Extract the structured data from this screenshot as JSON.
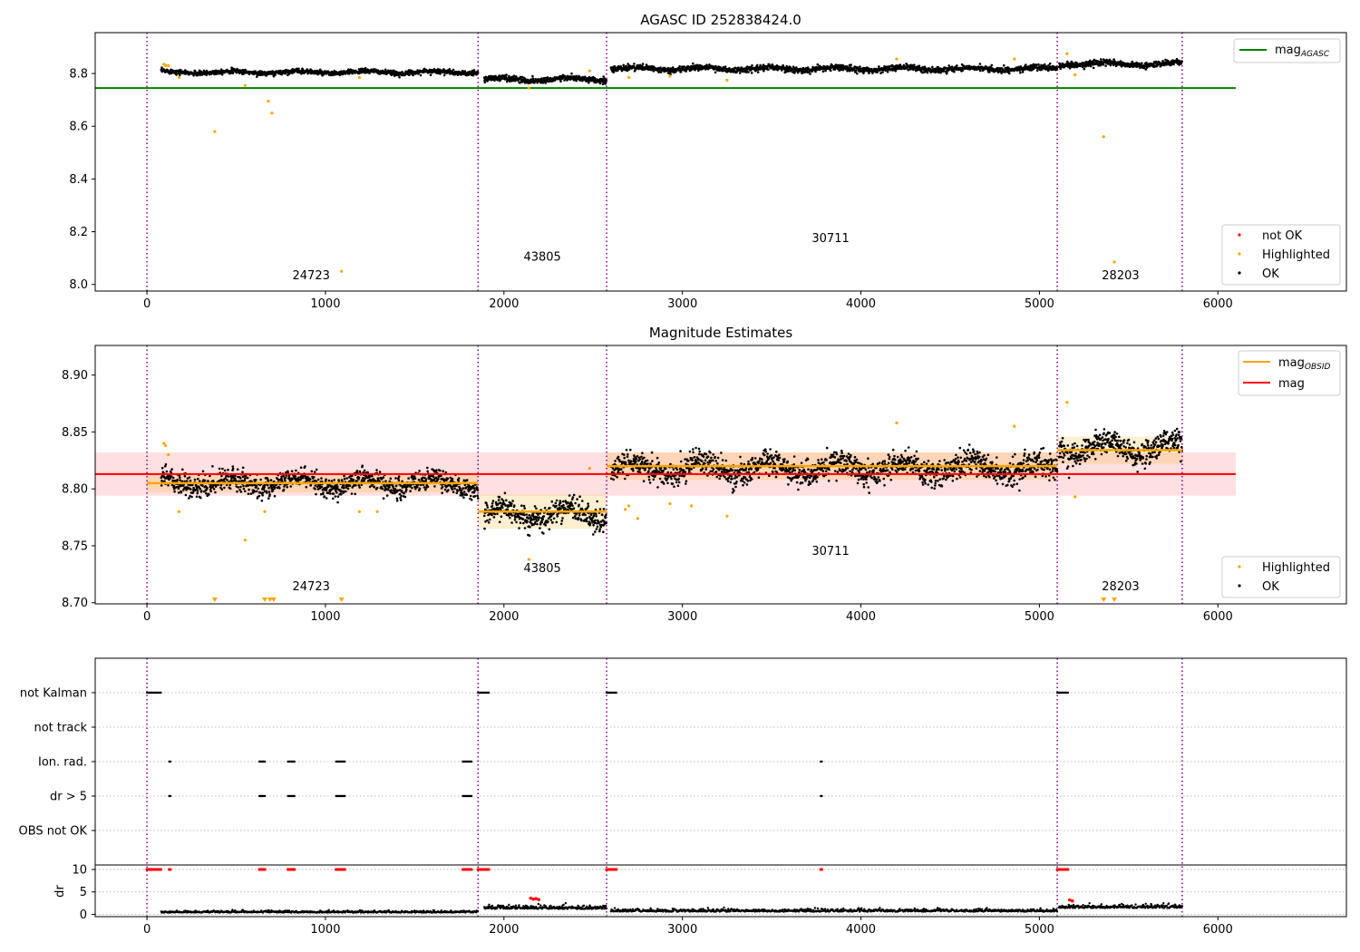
{
  "chart_data": [
    {
      "type": "scatter",
      "title": "AGASC ID 252838424.0",
      "xlim": [
        -290,
        6720
      ],
      "ylim": [
        7.975,
        8.955
      ],
      "x_ticks": [
        0,
        1000,
        2000,
        3000,
        4000,
        5000,
        6000
      ],
      "y_ticks": [
        "8.0",
        "8.2",
        "8.4",
        "8.6",
        "8.8"
      ],
      "obs_boundaries": [
        0,
        1855,
        2575,
        5100,
        5800
      ],
      "obs_labels": [
        {
          "text": "24723",
          "x": 920,
          "y": 8.02
        },
        {
          "text": "43805",
          "x": 2215,
          "y": 8.09
        },
        {
          "text": "30711",
          "x": 3830,
          "y": 8.16
        },
        {
          "text": "28203",
          "x": 5455,
          "y": 8.02
        }
      ],
      "hlines": [
        {
          "name": "mag_AGASC",
          "y": 8.745,
          "x_range": [
            -290,
            6100
          ],
          "color": "#008000"
        }
      ],
      "segments": [
        {
          "x_range": [
            80,
            1855
          ],
          "y": 8.805,
          "noise": 0.008
        },
        {
          "x_range": [
            1890,
            2575
          ],
          "y": 8.778,
          "noise": 0.01
        },
        {
          "x_range": [
            2600,
            5100
          ],
          "y": 8.818,
          "noise": 0.01
        },
        {
          "x_range": [
            5110,
            5800
          ],
          "y": 8.836,
          "noise": 0.01
        }
      ],
      "highlighted_points": [
        [
          95,
          8.835
        ],
        [
          105,
          8.83
        ],
        [
          120,
          8.83
        ],
        [
          180,
          8.785
        ],
        [
          380,
          8.58
        ],
        [
          550,
          8.755
        ],
        [
          680,
          8.695
        ],
        [
          700,
          8.65
        ],
        [
          1090,
          8.05
        ],
        [
          1190,
          8.785
        ],
        [
          2930,
          8.79
        ],
        [
          3250,
          8.775
        ],
        [
          5155,
          8.875
        ],
        [
          5200,
          8.795
        ],
        [
          5360,
          8.56
        ],
        [
          5420,
          8.085
        ],
        [
          2140,
          8.745
        ],
        [
          2480,
          8.81
        ],
        [
          2700,
          8.785
        ],
        [
          4200,
          8.855
        ],
        [
          4860,
          8.855
        ]
      ],
      "legend_lines": [
        {
          "label": "mag",
          "subscript": "AGASC",
          "color": "#008000"
        }
      ],
      "legend_markers": [
        {
          "label": "not OK",
          "color": "#ff0000"
        },
        {
          "label": "Highlighted",
          "color": "#ffa500"
        },
        {
          "label": "OK",
          "color": "#000000"
        }
      ]
    },
    {
      "type": "scatter",
      "title": "Magnitude Estimates",
      "xlim": [
        -290,
        6720
      ],
      "ylim": [
        8.699,
        8.926
      ],
      "x_ticks": [
        0,
        1000,
        2000,
        3000,
        4000,
        5000,
        6000
      ],
      "y_ticks": [
        "8.70",
        "8.75",
        "8.80",
        "8.85",
        "8.90"
      ],
      "obs_boundaries": [
        0,
        1855,
        2575,
        5100,
        5800
      ],
      "obs_labels": [
        {
          "text": "24723",
          "x": 920,
          "y": 8.711
        },
        {
          "text": "43805",
          "x": 2215,
          "y": 8.727
        },
        {
          "text": "30711",
          "x": 3830,
          "y": 8.742
        },
        {
          "text": "28203",
          "x": 5455,
          "y": 8.711
        }
      ],
      "mag_line": {
        "name": "mag",
        "y": 8.813,
        "band": [
          8.794,
          8.832
        ],
        "x_range": [
          -290,
          6100
        ],
        "color": "#ff0000"
      },
      "mag_obsid": [
        {
          "x_range": [
            0,
            1855
          ],
          "y": 8.805,
          "band": [
            8.797,
            8.813
          ]
        },
        {
          "x_range": [
            1855,
            2575
          ],
          "y": 8.78,
          "band": [
            8.765,
            8.795
          ]
        },
        {
          "x_range": [
            2575,
            5100
          ],
          "y": 8.82,
          "band": [
            8.808,
            8.832
          ]
        },
        {
          "x_range": [
            5100,
            5800
          ],
          "y": 8.834,
          "band": [
            8.822,
            8.846
          ]
        }
      ],
      "segments": [
        {
          "x_range": [
            80,
            1855
          ],
          "y": 8.805,
          "noise": 0.008
        },
        {
          "x_range": [
            1890,
            2575
          ],
          "y": 8.778,
          "noise": 0.01
        },
        {
          "x_range": [
            2600,
            5100
          ],
          "y": 8.818,
          "noise": 0.01
        },
        {
          "x_range": [
            5110,
            5800
          ],
          "y": 8.836,
          "noise": 0.01
        }
      ],
      "highlighted_points": [
        [
          95,
          8.84
        ],
        [
          105,
          8.838
        ],
        [
          120,
          8.83
        ],
        [
          180,
          8.78
        ],
        [
          550,
          8.755
        ],
        [
          660,
          8.78
        ],
        [
          1190,
          8.78
        ],
        [
          1290,
          8.78
        ],
        [
          2140,
          8.738
        ],
        [
          2480,
          8.818
        ],
        [
          2680,
          8.782
        ],
        [
          2700,
          8.785
        ],
        [
          2750,
          8.774
        ],
        [
          2930,
          8.787
        ],
        [
          3050,
          8.785
        ],
        [
          3250,
          8.776
        ],
        [
          4200,
          8.858
        ],
        [
          4860,
          8.855
        ],
        [
          5155,
          8.876
        ],
        [
          5200,
          8.793
        ]
      ],
      "clipped_points_x": [
        380,
        660,
        690,
        710,
        1090,
        5360,
        5420
      ],
      "legend_lines": [
        {
          "label": "mag",
          "subscript": "OBSID",
          "color": "#ffa500"
        },
        {
          "label": "mag",
          "subscript": "",
          "color": "#ff0000"
        }
      ],
      "legend_markers": [
        {
          "label": "Highlighted",
          "color": "#ffa500"
        },
        {
          "label": "OK",
          "color": "#000000"
        }
      ]
    },
    {
      "type": "scatter",
      "title": "",
      "xlim": [
        -290,
        6720
      ],
      "x_ticks": [
        0,
        1000,
        2000,
        3000,
        4000,
        5000,
        6000
      ],
      "flag_rows": [
        "not Kalman",
        "not track",
        "Ion. rad.",
        "dr > 5",
        "OBS not OK"
      ],
      "obs_boundaries": [
        0,
        1855,
        2575,
        5100,
        5800
      ],
      "flag_events": {
        "not Kalman": [
          [
            0,
            80
          ],
          [
            1855,
            1920
          ],
          [
            2575,
            2630
          ],
          [
            5100,
            5160
          ]
        ],
        "not track": [],
        "Ion. rad.": [
          [
            125,
            135
          ],
          [
            630,
            665
          ],
          [
            790,
            830
          ],
          [
            1060,
            1110
          ],
          [
            1770,
            1820
          ],
          [
            3775,
            3782
          ]
        ],
        "dr > 5": [
          [
            125,
            135
          ],
          [
            630,
            665
          ],
          [
            790,
            830
          ],
          [
            1060,
            1110
          ],
          [
            1770,
            1820
          ],
          [
            3775,
            3782
          ]
        ],
        "OBS not OK": []
      },
      "dr_panel": {
        "ylabel": "dr",
        "ylim": [
          -0.5,
          11
        ],
        "y_ticks": [
          0,
          5,
          10
        ],
        "clip_value": 10,
        "clipped_x_ranges": [
          [
            0,
            80
          ],
          [
            125,
            135
          ],
          [
            630,
            665
          ],
          [
            790,
            830
          ],
          [
            1060,
            1110
          ],
          [
            1770,
            1820
          ],
          [
            1855,
            1920
          ],
          [
            2575,
            2630
          ],
          [
            3775,
            3782
          ],
          [
            5100,
            5160
          ]
        ],
        "red_points": [
          [
            2150,
            3.6
          ],
          [
            2165,
            3.4
          ],
          [
            2180,
            3.5
          ],
          [
            2195,
            3.3
          ],
          [
            5170,
            3.2
          ],
          [
            5185,
            3.0
          ]
        ],
        "segments": [
          {
            "x_range": [
              80,
              1855
            ],
            "y": 0.4,
            "noise": 0.2
          },
          {
            "x_range": [
              1890,
              2575
            ],
            "y": 1.2,
            "noise": 0.4
          },
          {
            "x_range": [
              2600,
              5100
            ],
            "y": 0.6,
            "noise": 0.3
          },
          {
            "x_range": [
              5110,
              5800
            ],
            "y": 1.4,
            "noise": 0.4
          }
        ]
      }
    }
  ]
}
